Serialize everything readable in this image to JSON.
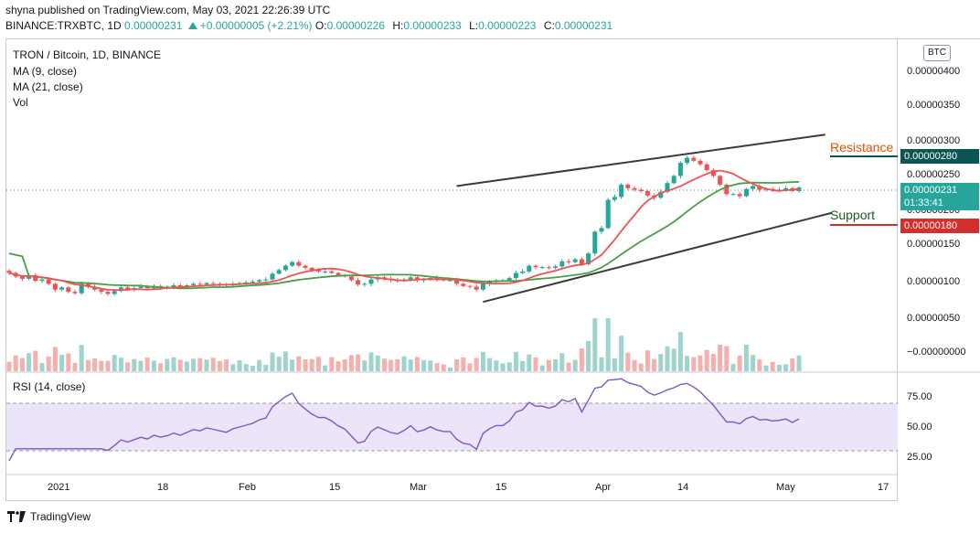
{
  "header": {
    "line1": "shyna published on TradingView.com, May 03, 2021 22:26:39 UTC",
    "symbol": "BINANCE:TRXBTC, 1D",
    "last": "0.00000231",
    "change": "+0.00000005 (+2.21%)",
    "open_label": "O:",
    "open": "0.00000226",
    "high_label": "H:",
    "high": "0.00000233",
    "low_label": "L:",
    "low": "0.00000223",
    "close_label": "C:",
    "close": "0.00000231"
  },
  "legend": {
    "title": "TRON / Bitcoin, 1D, BINANCE",
    "ma9": "MA (9, close)",
    "ma21": "MA (21, close)",
    "vol": "Vol",
    "rsi": "RSI (14, close)"
  },
  "price_scale": {
    "currency": "BTC",
    "ticks": [
      "0.00000400",
      "0.00000350",
      "0.00000300",
      "0.00000250",
      "0.00000200",
      "0.00000150",
      "0.00000100",
      "0.00000050",
      "−0.00000000"
    ],
    "resistance_value": "0.00000280",
    "current_value": "0.00000231",
    "countdown": "01:33:41",
    "support_value": "0.00000180"
  },
  "rsi_scale": {
    "ticks": [
      "75.00",
      "50.00",
      "25.00"
    ]
  },
  "annotations": {
    "resistance": "Resistance",
    "support": "Support"
  },
  "time_axis": [
    "2021",
    "18",
    "Feb",
    "15",
    "Mar",
    "15",
    "Apr",
    "14",
    "May",
    "17"
  ],
  "footer": {
    "brand": "TradingView"
  },
  "colors": {
    "up": "#26a69a",
    "down": "#ef5350",
    "ma9": "#ef5350",
    "ma21": "#43a047",
    "rsi_line": "#7e57c2",
    "rsi_band": "#e1d5f5",
    "trendline": "#3a3a3a"
  },
  "chart_data": {
    "type": "candlestick",
    "symbol": "TRXBTC",
    "timeframe": "1D",
    "x_start": "2021-01-01",
    "x_end": "2021-05-03",
    "y_range": [
      -5e-08,
      4.2e-06
    ],
    "close": [
      1.13e-06,
      1.08e-06,
      1.05e-06,
      1.1e-06,
      1.02e-06,
      1.04e-06,
      9.8e-07,
      9e-07,
      9.3e-07,
      8.7e-07,
      8.5e-07,
      9.8e-07,
      9.4e-07,
      9e-07,
      8.7e-07,
      8.4e-07,
      8.8e-07,
      9.3e-07,
      9e-07,
      9.2e-07,
      9.4e-07,
      9.2e-07,
      9.5e-07,
      9.3e-07,
      9.4e-07,
      9.6e-07,
      9.4e-07,
      9.6e-07,
      9.8e-07,
      9.7e-07,
      9.9e-07,
      9.8e-07,
      9.7e-07,
      9.6e-07,
      9.8e-07,
      9.9e-07,
      1e-06,
      1.01e-06,
      1.03e-06,
      1.04e-06,
      1.12e-06,
      1.17e-06,
      1.23e-06,
      1.28e-06,
      1.23e-06,
      1.2e-06,
      1.17e-06,
      1.15e-06,
      1.15e-06,
      1.13e-06,
      1.1e-06,
      1.08e-06,
      1.03e-06,
      9.7e-07,
      9.8e-07,
      1.04e-06,
      1.07e-06,
      1.05e-06,
      1.03e-06,
      1.02e-06,
      1.04e-06,
      1.07e-06,
      1.03e-06,
      1.04e-06,
      1.06e-06,
      1.04e-06,
      1.03e-06,
      1.03e-06,
      9.8e-07,
      9.5e-07,
      9.4e-07,
      9e-07,
      9.8e-07,
      1.01e-06,
      1.03e-06,
      1.03e-06,
      1.06e-06,
      1.13e-06,
      1.15e-06,
      1.23e-06,
      1.21e-06,
      1.21e-06,
      1.2e-06,
      1.22e-06,
      1.29e-06,
      1.28e-06,
      1.32e-06,
      1.25e-06,
      1.4e-06,
      1.7e-06,
      1.75e-06,
      2.14e-06,
      2.18e-06,
      2.35e-06,
      2.3e-06,
      2.28e-06,
      2.26e-06,
      2.2e-06,
      2.17e-06,
      2.25e-06,
      2.37e-06,
      2.47e-06,
      2.65e-06,
      2.72e-06,
      2.68e-06,
      2.63e-06,
      2.55e-06,
      2.47e-06,
      2.35e-06,
      2.22e-06,
      2.22e-06,
      2.19e-06,
      2.29e-06,
      2.33e-06,
      2.28e-06,
      2.29e-06,
      2.27e-06,
      2.28e-06,
      2.3e-06,
      2.26e-06,
      2.31e-06
    ],
    "ma9_visible": true,
    "ma21_visible": true,
    "volume_visible": true,
    "rsi": {
      "period": 14,
      "overbought": 70,
      "oversold": 30,
      "range": [
        10,
        90
      ],
      "last": 58
    },
    "trendlines": [
      {
        "name": "upper channel",
        "from": [
          "2021-03-10",
          2.33e-06
        ],
        "to": [
          "2021-05-05",
          3.04e-06
        ]
      },
      {
        "name": "lower channel",
        "from": [
          "2021-03-14",
          7.3e-07
        ],
        "to": [
          "2021-05-06",
          1.96e-06
        ]
      }
    ],
    "levels": {
      "resistance": 2.8e-06,
      "support": 1.8e-06,
      "current": 2.31e-06
    }
  }
}
